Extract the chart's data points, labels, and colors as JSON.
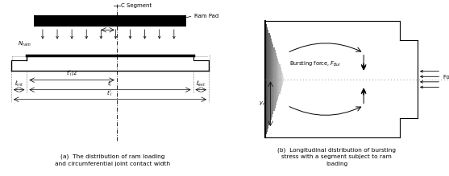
{
  "fig_width": 5.57,
  "fig_height": 2.19,
  "bg_color": "#ffffff",
  "caption_a": "(a)  The distribution of ram loading\nand circumferential joint contact width",
  "caption_b": "(b)  Longitudinal distribution of bursting\nstress with a segment subject to ram\nloading"
}
